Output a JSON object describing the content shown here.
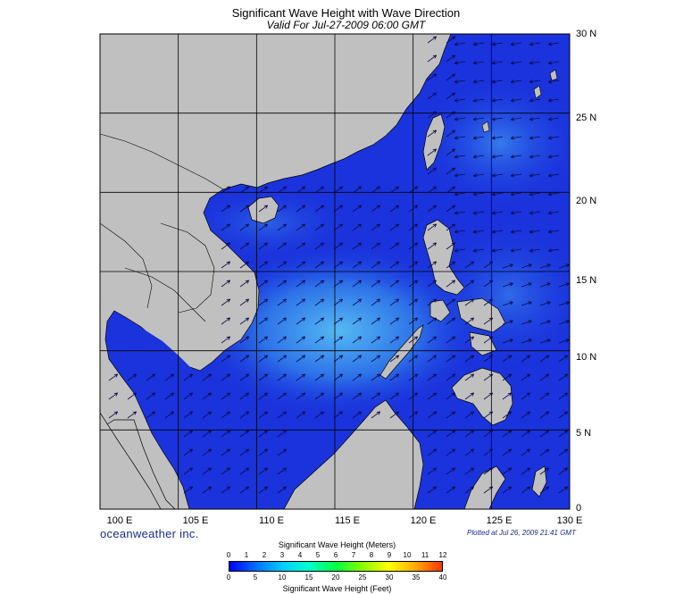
{
  "title": "Significant Wave Height with Wave Direction",
  "subtitle": "Valid For Jul-27-2009 06:00 GMT",
  "latitude_labels": [
    "30 N",
    "25 N",
    "20 N",
    "15 N",
    "10 N",
    "5 N",
    "0"
  ],
  "longitude_labels": [
    "100 E",
    "105 E",
    "110 E",
    "115 E",
    "120 E",
    "125 E",
    "130 E"
  ],
  "map_extent": {
    "lon_min": 100,
    "lon_max": 130,
    "lat_min": 0,
    "lat_max": 30
  },
  "brand": "oceanweather inc.",
  "plotted_note": "Plotted at Jul 26, 2009 21:41 GMT",
  "colorbar": {
    "title_meters": "Significant Wave Height (Meters)",
    "title_feet": "Significant Wave Height (Feet)",
    "meters_ticks": [
      "0",
      "1",
      "2",
      "3",
      "4",
      "5",
      "6",
      "7",
      "8",
      "9",
      "10",
      "11",
      "12"
    ],
    "feet_ticks": [
      "0",
      "5",
      "10",
      "15",
      "20",
      "25",
      "30",
      "35",
      "40"
    ],
    "colors": [
      "#0000ff",
      "#0070ff",
      "#00ccff",
      "#00ffcc",
      "#00ff44",
      "#88ff00",
      "#ffff00",
      "#ffaa00",
      "#ff3300"
    ]
  },
  "colors": {
    "land": "#c0c0c0",
    "sea_low": "#1a2ad8",
    "sea_mid": "#2f6fea",
    "sea_high": "#4fb0f2",
    "arrow": "#0a0a40",
    "grid": "#000000"
  },
  "legend_range_m": [
    0,
    12
  ]
}
